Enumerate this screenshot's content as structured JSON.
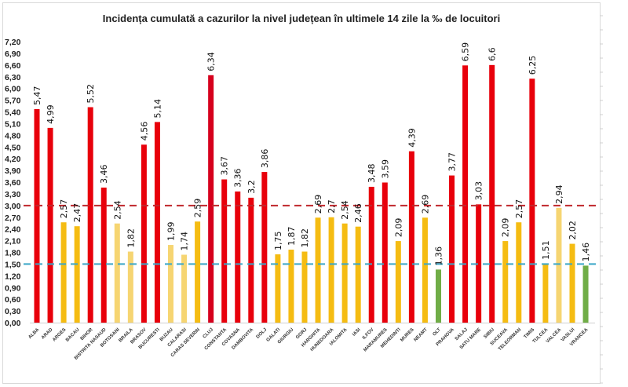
{
  "chart_data": {
    "type": "bar",
    "title": "Incidența cumulată a cazurilor la nivel județean în ultimele 14 zile la ‰ de locuitori",
    "xlabel": "",
    "ylabel": "",
    "ylim": [
      0,
      7.2
    ],
    "ytick_step": 0.3,
    "grid": false,
    "legend": "none",
    "decimal_separator": ",",
    "categories": [
      "ALBA",
      "ARAD",
      "ARGES",
      "BACAU",
      "BIHOR",
      "BISTRITA NASAUD",
      "BOTOSANI",
      "BRAILA",
      "BRASOV",
      "BUCURESTI",
      "BUZAU",
      "CALARASI",
      "CARAS SEVERIN",
      "CLUJ",
      "CONSTANTA",
      "COVASNA",
      "DAMBOVITA",
      "DOLJ",
      "GALATI",
      "GIURGIU",
      "GORJ",
      "HARGHITA",
      "HUNEDOARA",
      "IALOMITA",
      "IASI",
      "ILFOV",
      "MARAMURES",
      "MEHEDINTI",
      "MURES",
      "NEAMT",
      "OLT",
      "PRAHOVA",
      "SALAJ",
      "SATU MARE",
      "SIBIU",
      "SUCEAVA",
      "TELEORMAN",
      "TIMIS",
      "TULCEA",
      "VALCEA",
      "VASLUI",
      "VRANCEA"
    ],
    "values": [
      5.47,
      4.99,
      2.57,
      2.47,
      5.52,
      3.46,
      2.54,
      1.82,
      4.56,
      5.14,
      1.99,
      1.74,
      2.59,
      6.34,
      3.67,
      3.36,
      3.2,
      3.86,
      1.75,
      1.87,
      1.82,
      2.69,
      2.7,
      2.54,
      2.46,
      3.48,
      3.59,
      2.09,
      4.39,
      2.69,
      1.36,
      3.77,
      6.59,
      3.03,
      6.6,
      2.09,
      2.57,
      6.25,
      1.51,
      2.94,
      2.02,
      1.46
    ],
    "value_labels": [
      "5,47",
      "4,99",
      "2,57",
      "2,47",
      "5,52",
      "3,46",
      "2,54",
      "1,82",
      "4,56",
      "5,14",
      "1,99",
      "1,74",
      "2,59",
      "6,34",
      "3,67",
      "3,36",
      "3,2",
      "3,86",
      "1,75",
      "1,87",
      "1,82",
      "2,69",
      "2,7",
      "2,54",
      "2,46",
      "3,48",
      "3,59",
      "2,09",
      "4,39",
      "2,69",
      "1,36",
      "3,77",
      "6,59",
      "3,03",
      "6,6",
      "2,09",
      "2,57",
      "6,25",
      "1,51",
      "2,94",
      "2,02",
      "1,46"
    ],
    "bar_colors": [
      "red",
      "red",
      "gold",
      "gold",
      "red",
      "red",
      "light",
      "light",
      "red",
      "red",
      "light",
      "light",
      "gold",
      "crimson",
      "red",
      "red",
      "red",
      "red",
      "gold",
      "gold",
      "gold",
      "gold",
      "gold",
      "gold",
      "gold",
      "red",
      "red",
      "gold",
      "red",
      "gold",
      "green",
      "red",
      "red",
      "red",
      "red",
      "gold",
      "gold",
      "red",
      "gold",
      "light",
      "gold",
      "green"
    ],
    "palette": {
      "red": "#E8000B",
      "crimson": "#D6001C",
      "gold": "#F5BC12",
      "light": "#F6D572",
      "green": "#70AD47"
    },
    "reference_lines": [
      {
        "name": "threshold-3",
        "value": 3.0,
        "color": "#C0282D",
        "style": "dashed"
      },
      {
        "name": "threshold-1.5",
        "value": 1.5,
        "color": "#3AA6C8",
        "style": "dashed"
      }
    ],
    "ytick_labels": [
      "0,00",
      "0,30",
      "0,60",
      "0,90",
      "1,20",
      "1,50",
      "1,80",
      "2,10",
      "2,40",
      "2,70",
      "3,00",
      "3,30",
      "3,60",
      "3,90",
      "4,20",
      "4,50",
      "4,80",
      "5,10",
      "5,40",
      "5,70",
      "6,00",
      "6,30",
      "6,60",
      "6,90",
      "7,20"
    ]
  }
}
